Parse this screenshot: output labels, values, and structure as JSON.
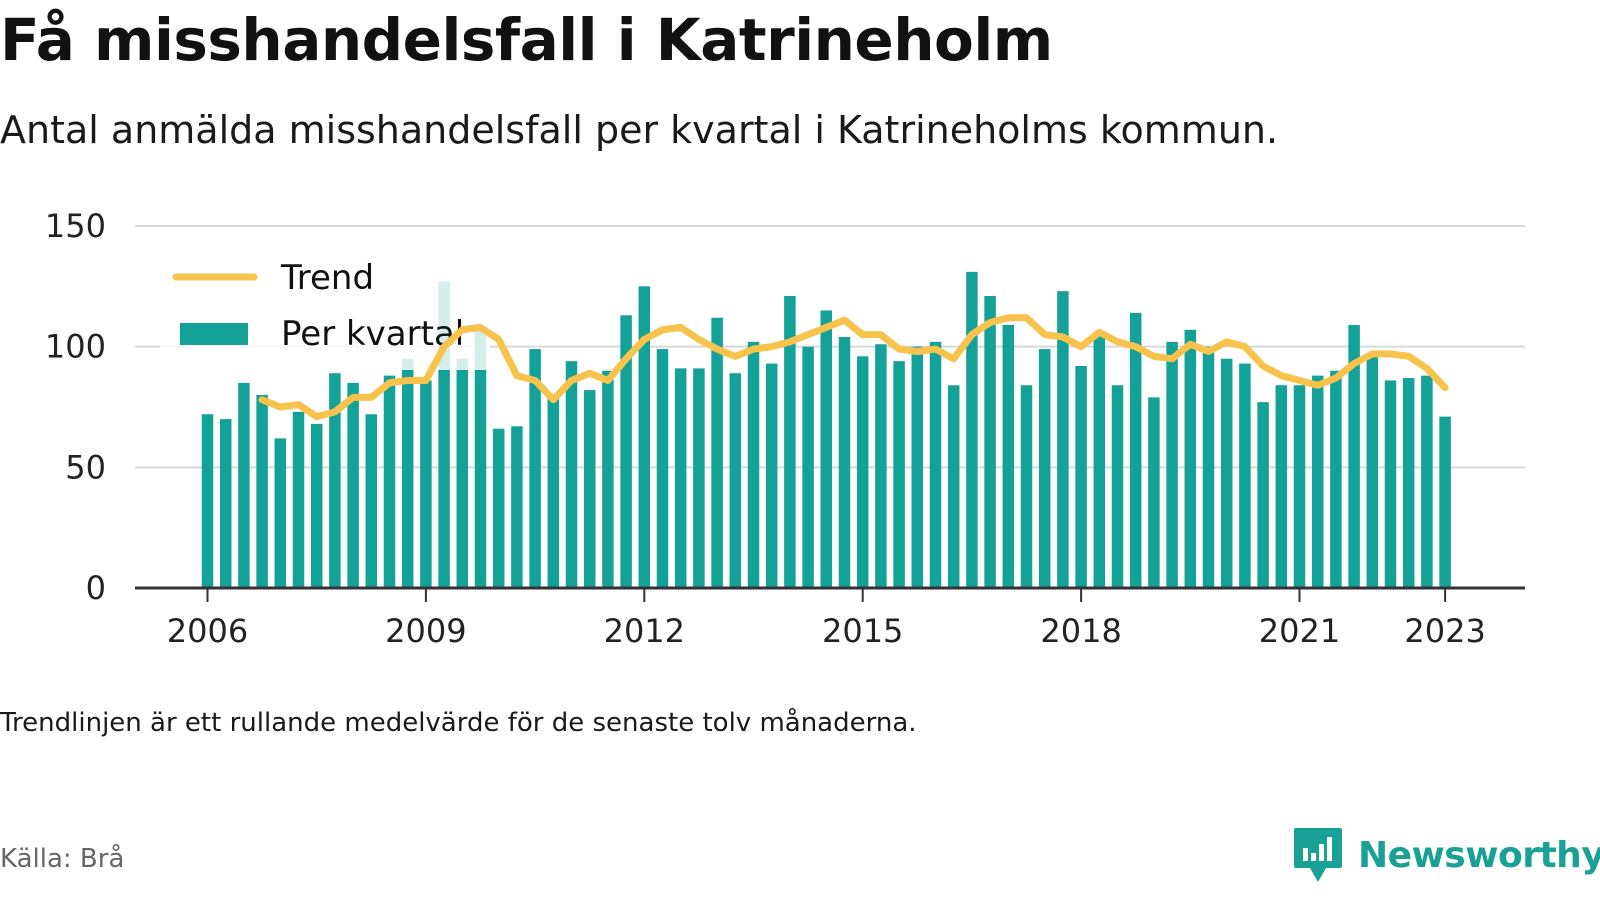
{
  "header": {
    "title": "Få misshandelsfall i Katrineholm",
    "subtitle": "Antal anmälda misshandelsfall per kvartal i Katrineholms kommun."
  },
  "footer": {
    "note": "Trendlinjen är ett rullande medelvärde för de senaste tolv månaderna.",
    "source": "Källa: Brå",
    "brand": "Newsworthy"
  },
  "colors": {
    "bars": "#13a198",
    "trend": "#f7c34c",
    "grid": "#d9d9d9",
    "axis": "#333333",
    "brand": "#19a196"
  },
  "chart_data": {
    "type": "bar",
    "title": "Få misshandelsfall i Katrineholm",
    "subtitle": "Antal anmälda misshandelsfall per kvartal i Katrineholms kommun.",
    "xlabel": "",
    "ylabel": "",
    "ylim": [
      0,
      150
    ],
    "yticks": [
      0,
      50,
      100,
      150
    ],
    "xticks": [
      "2006",
      "2009",
      "2012",
      "2015",
      "2018",
      "2021",
      "2023"
    ],
    "grid": true,
    "legend": "top-left",
    "x_start": "2006 Q1",
    "series": [
      {
        "name": "Per kvartal",
        "kind": "bar",
        "values": [
          72,
          70,
          85,
          80,
          62,
          73,
          68,
          89,
          85,
          72,
          88,
          95,
          86,
          127,
          95,
          108,
          66,
          67,
          99,
          80,
          94,
          82,
          90,
          113,
          125,
          99,
          91,
          91,
          112,
          89,
          102,
          93,
          121,
          100,
          115,
          104,
          96,
          101,
          94,
          100,
          102,
          84,
          131,
          121,
          109,
          84,
          99,
          123,
          92,
          105,
          84,
          114,
          79,
          102,
          107,
          100,
          95,
          93,
          77,
          84,
          84,
          88,
          90,
          109,
          96,
          86,
          87,
          88,
          71
        ]
      },
      {
        "name": "Trend",
        "kind": "line",
        "values": [
          null,
          null,
          null,
          78,
          75,
          76,
          71,
          73,
          79,
          79,
          85,
          86,
          86,
          100,
          107,
          108,
          103,
          88,
          86,
          78,
          86,
          89,
          86,
          95,
          103,
          107,
          108,
          103,
          99,
          96,
          99,
          100,
          102,
          105,
          108,
          111,
          105,
          105,
          99,
          98,
          99,
          95,
          105,
          110,
          112,
          112,
          105,
          104,
          100,
          106,
          102,
          100,
          96,
          95,
          101,
          98,
          102,
          100,
          92,
          88,
          86,
          84,
          87,
          93,
          97,
          97,
          96,
          91,
          83
        ]
      }
    ]
  }
}
